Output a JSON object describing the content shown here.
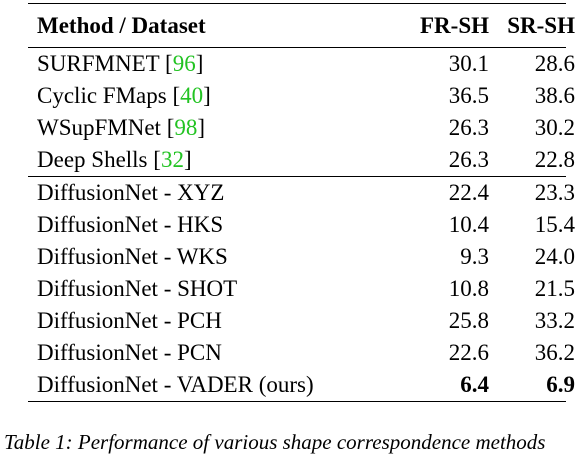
{
  "table": {
    "headers": [
      "Method / Dataset",
      "FR-SH",
      "SR-SH"
    ],
    "group1": [
      {
        "method": "SURFMNET",
        "cite": "96",
        "fr": "30.1",
        "sr": "28.6"
      },
      {
        "method": "Cyclic FMaps",
        "cite": "40",
        "fr": "36.5",
        "sr": "38.6"
      },
      {
        "method": "WSupFMNet",
        "cite": "98",
        "fr": "26.3",
        "sr": "30.2"
      },
      {
        "method": "Deep Shells",
        "cite": "32",
        "fr": "26.3",
        "sr": "22.8"
      }
    ],
    "group2": [
      {
        "method": "DiffusionNet - XYZ",
        "fr": "22.4",
        "sr": "23.3"
      },
      {
        "method": "DiffusionNet - HKS",
        "fr": "10.4",
        "sr": "15.4"
      },
      {
        "method": "DiffusionNet - WKS",
        "fr": "9.3",
        "sr": "24.0"
      },
      {
        "method": "DiffusionNet - SHOT",
        "fr": "10.8",
        "sr": "21.5"
      },
      {
        "method": "DiffusionNet - PCH",
        "fr": "25.8",
        "sr": "33.2"
      },
      {
        "method": "DiffusionNet - PCN",
        "fr": "22.6",
        "sr": "36.2"
      },
      {
        "method": "DiffusionNet - VADER (ours)",
        "fr": "6.4",
        "sr": "6.9"
      }
    ]
  },
  "caption": "Table 1: Performance of various shape correspondence methods"
}
